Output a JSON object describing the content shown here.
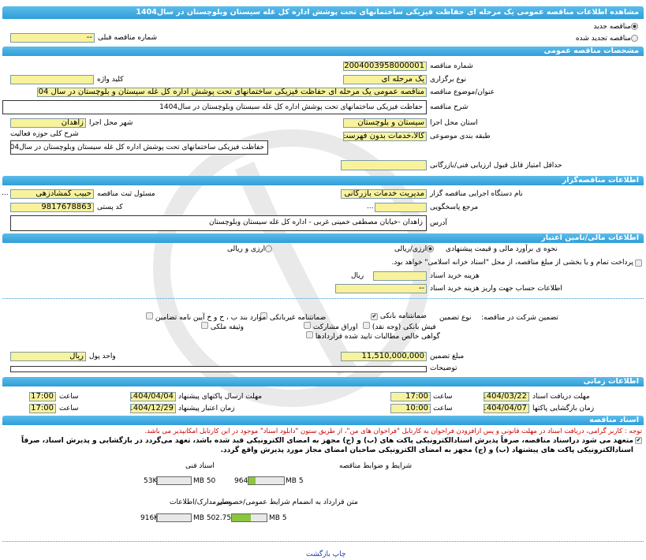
{
  "title": "مشاهده اطلاعات مناقصه عمومی یک مرحله ای حفاظت فیزیکی ساختمانهای تحت پوشش اداره کل غله سیستان وبلوچستان در سال1404",
  "tender_type": {
    "new": "مناقصه جدید",
    "renewed": "مناقصه تجدید شده",
    "selected": "new"
  },
  "previous_number": {
    "label": "شماره مناقصه قبلی",
    "value": "--"
  },
  "general": {
    "header": "مشخصات مناقصه عمومی",
    "number": {
      "label": "شماره مناقصه",
      "value": "2004003958000001"
    },
    "holding_type": {
      "label": "نوع برگزاری",
      "value": "یک مرحله ای"
    },
    "keyword": {
      "label": "کلید واژه",
      "value": ""
    },
    "subject": {
      "label": "عنوان/موضوع مناقصه",
      "value": "مناقصه عمومی یک مرحله ای حفاظت فیزیکی ساختمانهای تحت پوشش اداره کل غله سیستان و بلوچستان در سال 1404"
    },
    "description": {
      "label": "شرح مناقصه",
      "value": "حفاظت فیزیکی ساختمانهای تحت پوشش اداره کل غله سیستان وبلوچستان در سال1404"
    },
    "province": {
      "label": "استان محل اجرا",
      "value": "سیستان و بلوچستان"
    },
    "city": {
      "label": "شهر محل اجرا",
      "value": "زاهدان"
    },
    "category": {
      "label": "طبقه بندی موضوعی",
      "value": "کالا،خدمات بدون فهرست بها"
    },
    "activity": {
      "label": "شرح کلی حوزه فعالیت",
      "value": "حفاظت فیزیکی ساختمانهای تحت پوشش اداره کل غله سیستان وبلوچستان در سال1404"
    },
    "min_score": {
      "label": "حداقل امتیاز قابل قبول ارزیابی فنی/بازرگانی",
      "value": ""
    }
  },
  "organizer": {
    "header": "اطلاعات مناقصه‌گزار",
    "org": {
      "label": "نام دستگاه اجرایی مناقصه گزار",
      "value": "مدیریت خدمات بازرگانی دولتی"
    },
    "registrar": {
      "label": "مسئول ثبت مناقصه",
      "value": "حبیب گمشادزهی"
    },
    "reference": {
      "label": "مرجع پاسخگویی",
      "value": ""
    },
    "postal": {
      "label": "کد پستی",
      "value": "9817678863"
    },
    "address": {
      "label": "آدرس",
      "value": "زاهدان -خیابان مصطفی خمینی غربی - اداره کل غله سیستان وبلوچستان"
    },
    "more": "..."
  },
  "finance": {
    "header": "اطلاعات مالی/تامین اعتبار",
    "estimate_label": "نحوه ی برآورد مالی و قیمت پیشنهادی",
    "opt1": "ارزی/ریالی",
    "opt2": "ارزی و ریالی",
    "treasury": "پرداخت تمام و یا بخشی از مبلغ مناقصه، از محل \"اسناد خزانه اسلامی\" خواهد بود.",
    "doc_fee": {
      "label": "هزینه خرید اسناد",
      "value": "",
      "unit": "ریال"
    },
    "account": {
      "label": "اطلاعات حساب جهت واریز هزینه خرید اسناد",
      "value": "--"
    },
    "guarantee_label": "تضمین شرکت در مناقصه:",
    "guarantee_type": "نوع تضمین",
    "options": [
      {
        "label": "ضمانتنامه بانکی",
        "checked": true
      },
      {
        "label": "ضمانتنامه غیربانکی",
        "checked": false
      },
      {
        "label": "موارد بند ب ، ح و خ آیین نامه تضامین",
        "checked": false
      },
      {
        "label": "فیش بانکی (وجه نقد)",
        "checked": false
      },
      {
        "label": "اوراق مشارکت",
        "checked": false
      },
      {
        "label": "وثیقه ملکی",
        "checked": false
      },
      {
        "label": "گواهی خالص مطالبات تایید شده قراردادها",
        "checked": false
      }
    ],
    "amount": {
      "label": "مبلغ تضمین",
      "value": "11,510,000,000"
    },
    "currency": {
      "label": "واحد پول",
      "value": "ریال"
    },
    "notes": {
      "label": "توضیحات",
      "value": ""
    }
  },
  "timing": {
    "header": "اطلاعات زمانی",
    "hour": "ساعت",
    "doc_deadline": {
      "label": "مهلت دریافت اسناد",
      "date": "1404/03/22",
      "time": "17:00"
    },
    "submit_deadline": {
      "label": "مهلت ارسال پاکتهای پیشنهاد",
      "date": "1404/04/04",
      "time": "17:00"
    },
    "opening": {
      "label": "زمان بازگشایی پاکتها",
      "date": "1404/04/07",
      "time": "10:00"
    },
    "validity": {
      "label": "زمان اعتبار پیشنهاد",
      "date": "1404/12/29",
      "time": "17:00"
    }
  },
  "documents": {
    "header": "اسناد مناقصه",
    "note": "توجه : کاربر گرامی، دریافت اسناد در مهلت قانونی و پس ازافزودن فراخوان به کارتابل \"فراخوان های من\"، از طریق ستون \"دانلود اسناد\" موجود در این کارتابل امکانپذیر می باشد.",
    "commit": "متعهد می شود دراسناد مناقصه، صرفاً پذیرش اسنادالکترونیکی پاکت های (ب) و (ج) مجهز به امضای الکترونیکی قید شده باشد، تعهد می‌گردد در بازگشایی و پذیرش اسناد، صرفاً اسنادالکترونیکی پاکت های پیشنهاد (ب) و (ج) مجهز به امضای الکترونیکی صاحبان امضای مجاز مورد پذیرش واقع گردد.",
    "files": [
      {
        "label": "شرایط و ضوابط مناقصه",
        "size": "964KB",
        "max": "5 MB",
        "fill": 0.19
      },
      {
        "label": "اسناد فنی",
        "size": "53KB",
        "max": "50 MB",
        "fill": 0.001
      },
      {
        "label": "متن قرارداد به انضمام شرایط عمومی/خصوصی",
        "size": "2.75MB",
        "max": "5 MB",
        "fill": 0.55
      },
      {
        "label": "سایرمدارک/اطلاعات",
        "size": "916KB",
        "max": "50 MB",
        "fill": 0.018
      }
    ]
  },
  "links": {
    "print": "چاپ",
    "back": "بازگشت"
  }
}
